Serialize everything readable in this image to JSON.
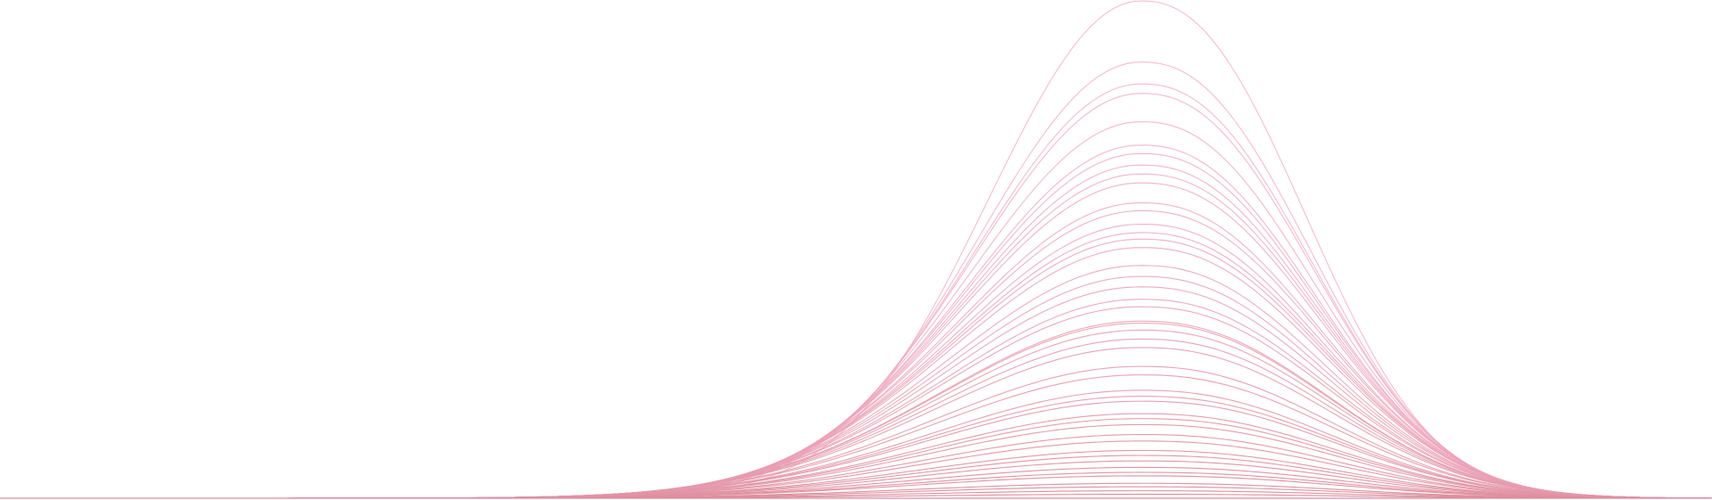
{
  "colors": {
    "background": "#ffffff",
    "line_pink": "#f0a6c0",
    "line_rose": "#dc8e9c"
  },
  "wave_set": {
    "line_count": 46,
    "relative_heights": [
      1.0,
      0.877,
      0.833,
      0.814,
      0.757,
      0.71,
      0.693,
      0.67,
      0.652,
      0.634,
      0.594,
      0.578,
      0.551,
      0.534,
      0.521,
      0.504,
      0.468,
      0.446,
      0.425,
      0.4,
      0.385,
      0.356,
      0.352,
      0.338,
      0.32,
      0.303,
      0.265,
      0.248,
      0.217,
      0.205,
      0.195,
      0.17,
      0.16,
      0.148,
      0.128,
      0.115,
      0.096,
      0.086,
      0.075,
      0.062,
      0.052,
      0.045,
      0.03,
      0.023,
      0.015,
      0.008
    ]
  }
}
